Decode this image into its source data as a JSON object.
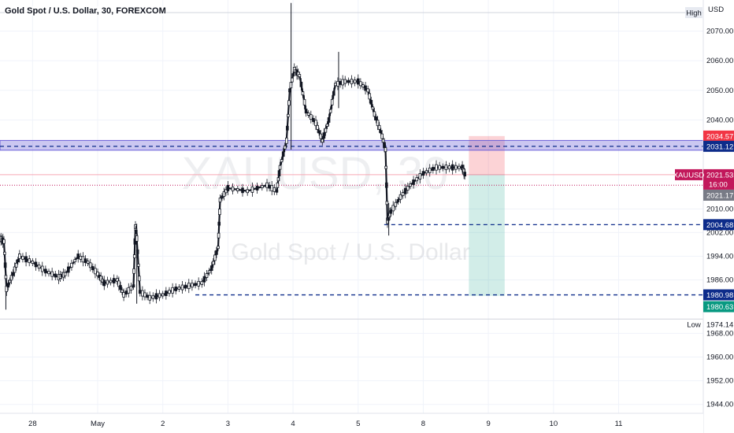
{
  "chart_data": {
    "type": "candlestick",
    "title": "Gold Spot / U.S. Dollar, 30, FOREXCOM",
    "watermark": {
      "symbol": "XAUUSD, 30",
      "name": "Gold Spot / U.S. Dollar"
    },
    "currency_label": "USD",
    "ylim": [
      1941.0,
      2080.5
    ],
    "y_ticks": [
      2070.0,
      2060.0,
      2050.0,
      2040.0,
      2010.0,
      2002.0,
      1994.0,
      1986.0,
      1968.0,
      1960.0,
      1952.0,
      1944.0
    ],
    "x_ticks": [
      {
        "label": "28",
        "day": 0.0
      },
      {
        "label": "May",
        "day": 1.0
      },
      {
        "label": "2",
        "day": 2.0
      },
      {
        "label": "3",
        "day": 3.0
      },
      {
        "label": "4",
        "day": 4.0
      },
      {
        "label": "5",
        "day": 5.0
      },
      {
        "label": "8",
        "day": 6.0
      },
      {
        "label": "9",
        "day": 7.0
      },
      {
        "label": "10",
        "day": 8.0
      },
      {
        "label": "11",
        "day": 9.0
      }
    ],
    "x_range_days": [
      -0.5,
      10.3
    ],
    "high_label": "High",
    "low_label": "Low",
    "low_value": "1974.14",
    "current_price": {
      "symbol": "XAUUSD",
      "value": "2021.53",
      "countdown": "16:00",
      "color": "#c2185b"
    },
    "dotted_line_price": 2018.0,
    "prev_close_label": {
      "value": "2021.17",
      "color": "#787b86"
    },
    "support_zone": {
      "low": 2030.6,
      "high": 2032.3,
      "color": "#6b5fd8"
    },
    "levels": [
      {
        "price": 2031.12,
        "label": "2031.12",
        "color": "#0d2c8a",
        "start_day": -0.5
      },
      {
        "price": 2004.68,
        "label": "2004.68",
        "color": "#0d2c8a",
        "start_day": 5.4
      },
      {
        "price": 1980.98,
        "label": "1980.98",
        "color": "#0d2c8a",
        "start_day": 2.5
      }
    ],
    "position": {
      "start_day": 6.7,
      "end_day": 7.25,
      "entry": 2021.53,
      "stop": 2034.57,
      "stop_label": "2034.57",
      "stop_color": "#f23645",
      "target": 1980.63,
      "target_label": "1980.63",
      "target_color": "#089981"
    },
    "candles_path": [
      [
        -0.5,
        2000
      ],
      [
        -0.44,
        1999
      ],
      [
        -0.4,
        1983
      ],
      [
        -0.3,
        1988
      ],
      [
        -0.2,
        1994
      ],
      [
        0.0,
        1992
      ],
      [
        0.2,
        1989
      ],
      [
        0.4,
        1987
      ],
      [
        0.5,
        1988
      ],
      [
        0.7,
        1994
      ],
      [
        0.85,
        1992
      ],
      [
        1.0,
        1988
      ],
      [
        1.1,
        1985
      ],
      [
        1.3,
        1986
      ],
      [
        1.4,
        1981
      ],
      [
        1.55,
        1984
      ],
      [
        1.58,
        2004
      ],
      [
        1.6,
        2000
      ],
      [
        1.65,
        1982
      ],
      [
        1.8,
        1980
      ],
      [
        2.0,
        1981
      ],
      [
        2.2,
        1983
      ],
      [
        2.4,
        1984
      ],
      [
        2.6,
        1985
      ],
      [
        2.75,
        1990
      ],
      [
        2.85,
        1997
      ],
      [
        2.88,
        2013
      ],
      [
        3.0,
        2017
      ],
      [
        3.3,
        2016
      ],
      [
        3.6,
        2018
      ],
      [
        3.75,
        2016
      ],
      [
        3.8,
        2024
      ],
      [
        3.9,
        2033
      ],
      [
        3.95,
        2050
      ],
      [
        4.02,
        2057
      ],
      [
        4.1,
        2055
      ],
      [
        4.2,
        2043
      ],
      [
        4.35,
        2039
      ],
      [
        4.45,
        2033
      ],
      [
        4.55,
        2040
      ],
      [
        4.65,
        2052
      ],
      [
        4.8,
        2053
      ],
      [
        5.0,
        2053
      ],
      [
        5.15,
        2050
      ],
      [
        5.25,
        2042
      ],
      [
        5.35,
        2036
      ],
      [
        5.42,
        2030
      ],
      [
        5.45,
        2006
      ],
      [
        5.5,
        2009
      ],
      [
        5.65,
        2014
      ],
      [
        5.8,
        2018
      ],
      [
        6.0,
        2022
      ],
      [
        6.2,
        2024
      ],
      [
        6.4,
        2024
      ],
      [
        6.6,
        2024
      ],
      [
        6.65,
        2021
      ]
    ],
    "spikes": [
      {
        "day": 3.97,
        "low": 2030,
        "high": 2079.5
      },
      {
        "day": 4.7,
        "low": 2044,
        "high": 2063
      },
      {
        "day": 5.47,
        "low": 2001,
        "high": 2012
      },
      {
        "day": 1.6,
        "low": 1978,
        "high": 2005
      },
      {
        "day": -0.41,
        "low": 1976,
        "high": 1990
      }
    ]
  }
}
